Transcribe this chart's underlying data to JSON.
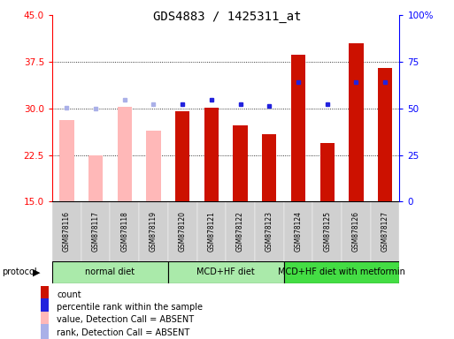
{
  "title": "GDS4883 / 1425311_at",
  "samples": [
    "GSM878116",
    "GSM878117",
    "GSM878118",
    "GSM878119",
    "GSM878120",
    "GSM878121",
    "GSM878122",
    "GSM878123",
    "GSM878124",
    "GSM878125",
    "GSM878126",
    "GSM878127"
  ],
  "bar_values": [
    null,
    null,
    null,
    null,
    29.5,
    30.1,
    27.3,
    25.8,
    38.6,
    24.5,
    40.5,
    36.5
  ],
  "absent_values": [
    28.2,
    22.4,
    30.2,
    26.4,
    null,
    null,
    null,
    null,
    null,
    null,
    null,
    null
  ],
  "percentile_rank": [
    50.5,
    50.0,
    54.5,
    52.5,
    52.5,
    54.5,
    52.5,
    51.5,
    64.0,
    52.5,
    64.0,
    64.0
  ],
  "absent_rank": [
    50.5,
    50.0,
    54.5,
    52.5,
    null,
    null,
    null,
    null,
    null,
    null,
    null,
    null
  ],
  "ylim": [
    15,
    45
  ],
  "ylim_right": [
    0,
    100
  ],
  "yticks": [
    15,
    22.5,
    30,
    37.5,
    45
  ],
  "yticks_right": [
    0,
    25,
    50,
    75,
    100
  ],
  "group_data": [
    {
      "start": 0,
      "end": 3,
      "color": "#aaeaaa",
      "label": "normal diet"
    },
    {
      "start": 4,
      "end": 7,
      "color": "#aaeaaa",
      "label": "MCD+HF diet"
    },
    {
      "start": 8,
      "end": 11,
      "color": "#44dd44",
      "label": "MCD+HF diet with metformin"
    }
  ],
  "bar_color_red": "#cc1100",
  "bar_color_pink": "#ffb8b8",
  "dot_color_blue": "#2222dd",
  "dot_color_lavender": "#aab0e8",
  "bar_width": 0.5,
  "title_fontsize": 10,
  "tick_fontsize": 7.5,
  "sample_fontsize": 5.5,
  "legend_fontsize": 7,
  "protocol_fontsize": 7,
  "group_fontsize": 7
}
